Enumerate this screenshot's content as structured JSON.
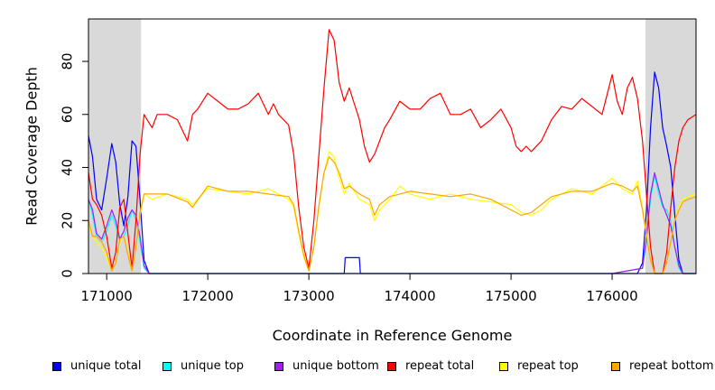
{
  "chart_data": {
    "type": "line",
    "title": "",
    "xlabel": "Coordinate in Reference Genome",
    "ylabel": "Read Coverage Depth",
    "xlim": [
      170820,
      176830
    ],
    "ylim": [
      0,
      96
    ],
    "x_ticks": [
      171000,
      172000,
      173000,
      174000,
      175000,
      176000
    ],
    "y_ticks": [
      0,
      20,
      40,
      60,
      80
    ],
    "shaded_regions": [
      [
        170820,
        171340
      ],
      [
        176330,
        176830
      ]
    ],
    "grid": false,
    "legend_position": "bottom",
    "series": [
      {
        "name": "unique total",
        "color": "#0000ff",
        "x": [
          170820,
          170860,
          170900,
          170950,
          171000,
          171050,
          171090,
          171130,
          171170,
          171210,
          171250,
          171290,
          171330,
          171370,
          171420,
          171500,
          172000,
          173000,
          173350,
          173360,
          173500,
          173510,
          174000,
          175000,
          176000,
          176250,
          176300,
          176340,
          176380,
          176420,
          176460,
          176500,
          176540,
          176580,
          176620,
          176660,
          176700,
          176830
        ],
        "y": [
          52,
          44,
          28,
          24,
          36,
          49,
          42,
          26,
          18,
          29,
          50,
          48,
          28,
          5,
          0,
          0,
          0,
          0,
          0,
          6,
          6,
          0,
          0,
          0,
          0,
          0,
          4,
          24,
          55,
          76,
          70,
          55,
          48,
          40,
          22,
          5,
          0,
          0
        ]
      },
      {
        "name": "unique top",
        "color": "#00ffff",
        "x": [
          170820,
          170860,
          170900,
          170950,
          171000,
          171050,
          171090,
          171130,
          171170,
          171210,
          171250,
          171290,
          171330,
          171370,
          171420,
          172000,
          173000,
          174000,
          175000,
          176000,
          176300,
          176340,
          176380,
          176420,
          176460,
          176500,
          176540,
          176580,
          176620,
          176660,
          176700,
          176830
        ],
        "y": [
          28,
          22,
          14,
          12,
          16,
          22,
          18,
          12,
          14,
          18,
          24,
          20,
          12,
          2,
          0,
          0,
          0,
          0,
          0,
          0,
          2,
          12,
          28,
          37,
          30,
          25,
          24,
          20,
          10,
          2,
          0,
          0
        ]
      },
      {
        "name": "unique bottom",
        "color": "#a020f0",
        "x": [
          170820,
          170860,
          170900,
          170950,
          171000,
          171050,
          171090,
          171130,
          171170,
          171210,
          171250,
          171290,
          171330,
          171370,
          171420,
          172000,
          173000,
          174000,
          175000,
          176000,
          176300,
          176340,
          176380,
          176420,
          176460,
          176500,
          176540,
          176580,
          176620,
          176660,
          176700,
          176830
        ],
        "y": [
          28,
          24,
          15,
          13,
          18,
          24,
          20,
          13,
          16,
          21,
          24,
          22,
          14,
          3,
          0,
          0,
          0,
          0,
          0,
          0,
          2,
          14,
          30,
          38,
          32,
          26,
          22,
          18,
          10,
          3,
          0,
          0
        ]
      },
      {
        "name": "repeat total",
        "color": "#ff0000",
        "x": [
          170820,
          170860,
          170900,
          170950,
          171000,
          171050,
          171090,
          171130,
          171170,
          171210,
          171250,
          171290,
          171330,
          171370,
          171400,
          171450,
          171500,
          171600,
          171700,
          171800,
          171850,
          171900,
          172000,
          172100,
          172200,
          172300,
          172400,
          172500,
          172600,
          172650,
          172700,
          172800,
          172850,
          172900,
          172950,
          173000,
          173050,
          173100,
          173150,
          173200,
          173250,
          173300,
          173350,
          173400,
          173450,
          173500,
          173550,
          173600,
          173650,
          173700,
          173750,
          173800,
          173900,
          174000,
          174100,
          174200,
          174300,
          174400,
          174500,
          174600,
          174700,
          174800,
          174900,
          175000,
          175050,
          175100,
          175150,
          175200,
          175300,
          175400,
          175500,
          175600,
          175700,
          175800,
          175900,
          176000,
          176050,
          176100,
          176150,
          176200,
          176250,
          176300,
          176340,
          176380,
          176420,
          176460,
          176500,
          176540,
          176580,
          176620,
          176660,
          176700,
          176750,
          176830
        ],
        "y": [
          38,
          28,
          26,
          22,
          14,
          2,
          8,
          25,
          28,
          15,
          2,
          20,
          45,
          60,
          58,
          55,
          60,
          60,
          58,
          50,
          60,
          62,
          68,
          65,
          62,
          62,
          64,
          68,
          60,
          64,
          60,
          56,
          45,
          25,
          10,
          2,
          20,
          45,
          70,
          92,
          88,
          72,
          65,
          70,
          64,
          58,
          48,
          42,
          45,
          50,
          55,
          58,
          65,
          62,
          62,
          66,
          68,
          60,
          60,
          62,
          55,
          58,
          62,
          55,
          48,
          46,
          48,
          46,
          50,
          58,
          63,
          62,
          66,
          63,
          60,
          75,
          65,
          60,
          70,
          74,
          66,
          50,
          30,
          10,
          0,
          0,
          0,
          8,
          25,
          40,
          50,
          55,
          58,
          60
        ]
      },
      {
        "name": "repeat top",
        "color": "#ffff00",
        "x": [
          170820,
          170860,
          170900,
          170950,
          171000,
          171050,
          171090,
          171130,
          171170,
          171210,
          171250,
          171290,
          171330,
          171370,
          171450,
          171600,
          171800,
          171850,
          172000,
          172200,
          172400,
          172600,
          172800,
          172850,
          172900,
          172950,
          173000,
          173050,
          173100,
          173150,
          173200,
          173250,
          173300,
          173350,
          173400,
          173500,
          173600,
          173650,
          173700,
          173800,
          173900,
          174000,
          174200,
          174400,
          174600,
          174800,
          175000,
          175100,
          175200,
          175300,
          175400,
          175500,
          175600,
          175800,
          176000,
          176100,
          176200,
          176250,
          176300,
          176340,
          176380,
          176420,
          176460,
          176500,
          176540,
          176580,
          176620,
          176660,
          176700,
          176750,
          176830
        ],
        "y": [
          18,
          14,
          12,
          10,
          6,
          1,
          4,
          12,
          14,
          8,
          1,
          10,
          22,
          30,
          28,
          30,
          28,
          26,
          32,
          31,
          30,
          32,
          28,
          25,
          15,
          6,
          1,
          10,
          25,
          38,
          46,
          44,
          36,
          30,
          34,
          28,
          26,
          20,
          24,
          28,
          33,
          30,
          28,
          30,
          28,
          27,
          26,
          23,
          22,
          24,
          28,
          30,
          32,
          30,
          36,
          32,
          30,
          35,
          25,
          15,
          5,
          0,
          0,
          0,
          4,
          12,
          20,
          25,
          28,
          29,
          30
        ]
      },
      {
        "name": "repeat bottom",
        "color": "#ffa500",
        "x": [
          170820,
          170860,
          170900,
          170950,
          171000,
          171050,
          171090,
          171130,
          171170,
          171210,
          171250,
          171290,
          171330,
          171370,
          171450,
          171600,
          171800,
          171850,
          172000,
          172200,
          172400,
          172600,
          172800,
          172850,
          172900,
          172950,
          173000,
          173050,
          173100,
          173150,
          173200,
          173250,
          173300,
          173350,
          173400,
          173500,
          173600,
          173650,
          173700,
          173800,
          173900,
          174000,
          174200,
          174400,
          174600,
          174800,
          175000,
          175100,
          175200,
          175300,
          175400,
          175500,
          175600,
          175800,
          176000,
          176100,
          176200,
          176250,
          176300,
          176340,
          176380,
          176420,
          176460,
          176500,
          176540,
          176580,
          176620,
          176660,
          176700,
          176750,
          176830
        ],
        "y": [
          20,
          14,
          14,
          12,
          8,
          1,
          4,
          13,
          14,
          7,
          1,
          10,
          23,
          30,
          30,
          30,
          27,
          25,
          33,
          31,
          31,
          30,
          29,
          26,
          16,
          7,
          1,
          10,
          26,
          38,
          44,
          42,
          38,
          32,
          33,
          30,
          28,
          22,
          26,
          29,
          30,
          31,
          30,
          29,
          30,
          28,
          24,
          22,
          23,
          26,
          29,
          30,
          31,
          31,
          34,
          33,
          31,
          33,
          24,
          14,
          5,
          0,
          0,
          0,
          4,
          12,
          20,
          24,
          27,
          28,
          29
        ]
      }
    ]
  },
  "legend": {
    "items": [
      {
        "label": "unique total",
        "color": "#0000ff"
      },
      {
        "label": "unique top",
        "color": "#00ffff"
      },
      {
        "label": "unique bottom",
        "color": "#a020f0"
      },
      {
        "label": "repeat total",
        "color": "#ff0000"
      },
      {
        "label": "repeat top",
        "color": "#ffff00"
      },
      {
        "label": "repeat bottom",
        "color": "#ffa500"
      }
    ]
  }
}
